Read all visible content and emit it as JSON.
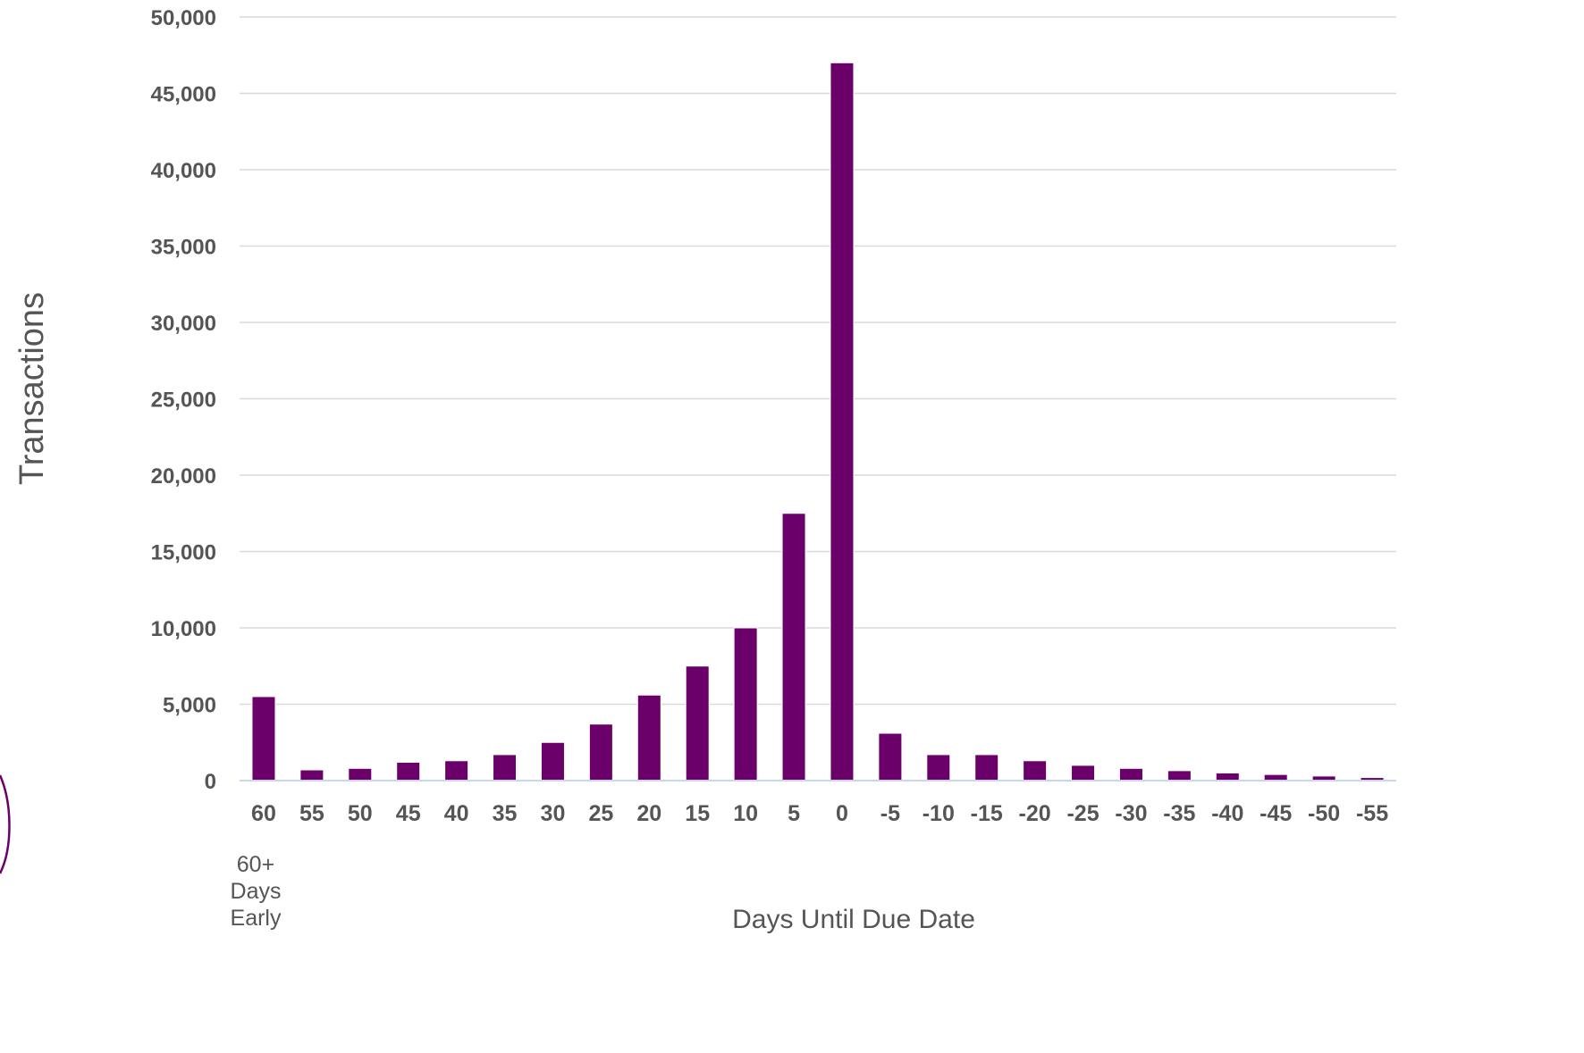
{
  "chart_data": {
    "type": "bar",
    "categories": [
      "60",
      "55",
      "50",
      "45",
      "40",
      "35",
      "30",
      "25",
      "20",
      "15",
      "10",
      "5",
      "0",
      "-5",
      "-10",
      "-15",
      "-20",
      "-25",
      "-30",
      "-35",
      "-40",
      "-45",
      "-50",
      "-55"
    ],
    "values": [
      5500,
      700,
      800,
      1200,
      1300,
      1700,
      2500,
      3700,
      5600,
      7500,
      10000,
      17500,
      47000,
      3100,
      1700,
      1700,
      1300,
      1000,
      800,
      650,
      500,
      400,
      300,
      200
    ],
    "yticks": [
      "0",
      "5,000",
      "10,000",
      "15,000",
      "20,000",
      "25,000",
      "30,000",
      "35,000",
      "40,000",
      "45,000",
      "50,000"
    ],
    "ylim": [
      0,
      50000
    ],
    "ylabel": "Transactions",
    "xlabel": "Days Until Due Date",
    "first_category_note": [
      "60+",
      "Days",
      "Early"
    ],
    "grid": true,
    "bar_color": "#6b006b",
    "grid_color": "#d9d9d9",
    "text_color": "#555555"
  }
}
